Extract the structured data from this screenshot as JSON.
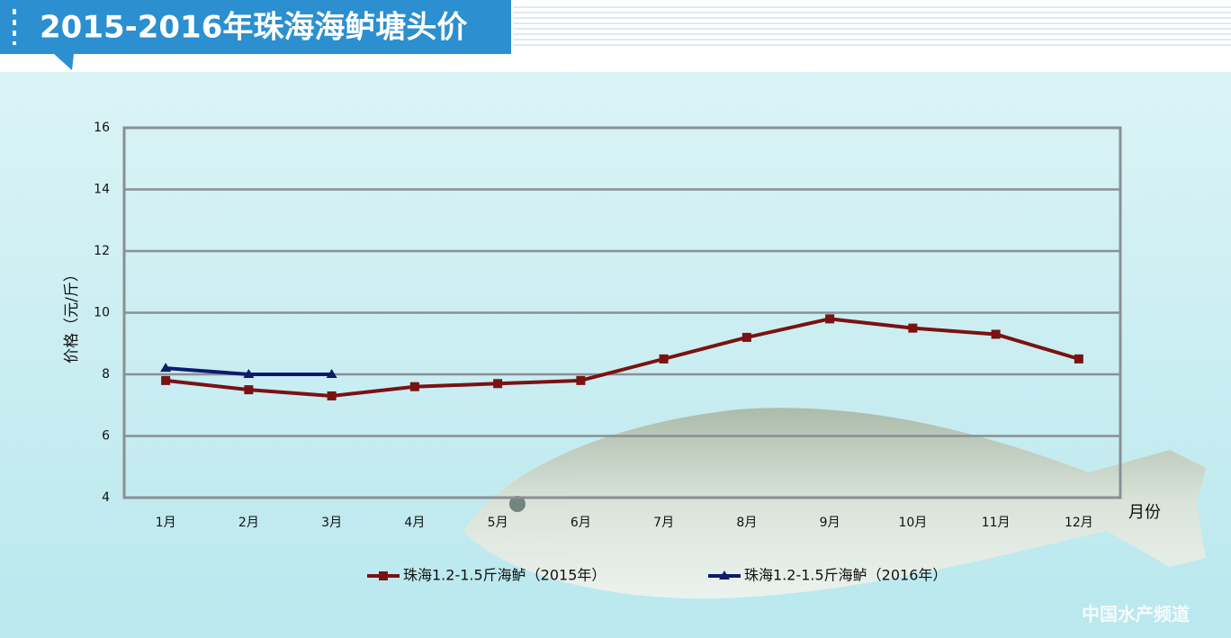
{
  "chart_data": {
    "type": "line",
    "title": "2015-2016年珠海海鲈塘头价",
    "y_label": "价格（元/斤）",
    "x_label": "月份",
    "watermark": "中国水产频道",
    "categories": [
      "1月",
      "2月",
      "3月",
      "4月",
      "5月",
      "6月",
      "7月",
      "8月",
      "9月",
      "10月",
      "11月",
      "12月"
    ],
    "series": [
      {
        "name": "珠海1.2-1.5斤海鲈（2015年）",
        "color": "#7a1212",
        "marker": "square",
        "values": [
          7.8,
          7.5,
          7.3,
          7.6,
          7.7,
          7.8,
          8.5,
          9.2,
          9.8,
          9.5,
          9.3,
          8.5
        ]
      },
      {
        "name": "珠海1.2-1.5斤海鲈（2016年）",
        "color": "#0e1a6e",
        "marker": "triangle",
        "values": [
          8.2,
          8.0,
          8.0,
          null,
          null,
          null,
          null,
          null,
          null,
          null,
          null,
          null
        ]
      }
    ],
    "ylim": [
      4,
      16
    ],
    "yticks": [
      4,
      6,
      8,
      10,
      12,
      14,
      16
    ],
    "grid": true
  }
}
